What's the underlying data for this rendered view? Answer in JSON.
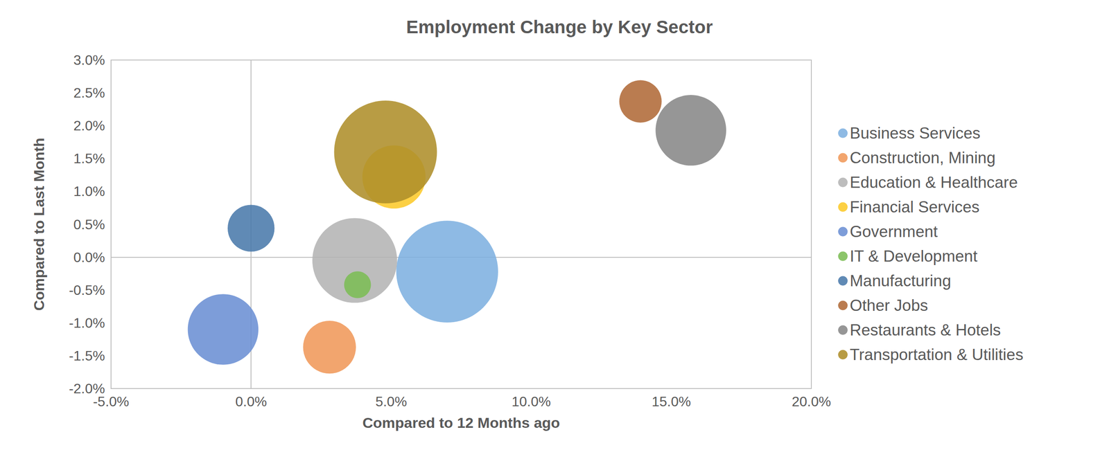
{
  "chart_data": {
    "type": "bubble",
    "title": "Employment Change by Key Sector",
    "x_label": "Compared to 12 Months ago",
    "y_label": "Compared to Last Month",
    "xlim": [
      -5,
      20
    ],
    "xticks": [
      {
        "value": -5,
        "label": "-5.0%"
      },
      {
        "value": 0,
        "label": "0.0%"
      },
      {
        "value": 5,
        "label": "5.0%"
      },
      {
        "value": 10,
        "label": "10.0%"
      },
      {
        "value": 15,
        "label": "15.0%"
      },
      {
        "value": 20,
        "label": "20.0%"
      }
    ],
    "ylim": [
      -2,
      3
    ],
    "yticks": [
      {
        "value": -2,
        "label": "-2.0%"
      },
      {
        "value": -1.5,
        "label": "-1.5%"
      },
      {
        "value": -1,
        "label": "-1.0%"
      },
      {
        "value": -0.5,
        "label": "-0.5%"
      },
      {
        "value": 0,
        "label": "0.0%"
      },
      {
        "value": 0.5,
        "label": "0.5%"
      },
      {
        "value": 1,
        "label": "1.0%"
      },
      {
        "value": 1.5,
        "label": "1.5%"
      },
      {
        "value": 2,
        "label": "2.0%"
      },
      {
        "value": 2.5,
        "label": "2.5%"
      },
      {
        "value": 3,
        "label": "3.0%"
      }
    ],
    "grid": false,
    "legend": "right",
    "series": [
      {
        "name": "Business Services",
        "color": "#7eb0e0",
        "x": [
          7.0
        ],
        "values": [
          -0.22
        ],
        "size": [
          52
        ]
      },
      {
        "name": "Construction, Mining",
        "color": "#f0995a",
        "x": [
          2.8
        ],
        "values": [
          -1.37
        ],
        "size": [
          14
        ]
      },
      {
        "name": "Education & Healthcare",
        "color": "#b4b4b4",
        "x": [
          3.7
        ],
        "values": [
          -0.05
        ],
        "size": [
          36
        ]
      },
      {
        "name": "Financial Services",
        "color": "#fcc92a",
        "x": [
          5.1
        ],
        "values": [
          1.22
        ],
        "size": [
          20
        ]
      },
      {
        "name": "Government",
        "color": "#6b8fd4",
        "x": [
          -1.0
        ],
        "values": [
          -1.1
        ],
        "size": [
          25
        ]
      },
      {
        "name": "IT & Development",
        "color": "#7cbd55",
        "x": [
          3.8
        ],
        "values": [
          -0.42
        ],
        "size": [
          3.6
        ]
      },
      {
        "name": "Manufacturing",
        "color": "#4a7aab",
        "x": [
          0.0
        ],
        "values": [
          0.44
        ],
        "size": [
          11
        ]
      },
      {
        "name": "Other Jobs",
        "color": "#b06a38",
        "x": [
          13.9
        ],
        "values": [
          2.37
        ],
        "size": [
          9
        ]
      },
      {
        "name": "Restaurants & Hotels",
        "color": "#888888",
        "x": [
          15.7
        ],
        "values": [
          1.93
        ],
        "size": [
          25
        ]
      },
      {
        "name": "Transportation & Utilities",
        "color": "#ae8e2a",
        "x": [
          4.8
        ],
        "values": [
          1.6
        ],
        "size": [
          53
        ]
      }
    ]
  }
}
